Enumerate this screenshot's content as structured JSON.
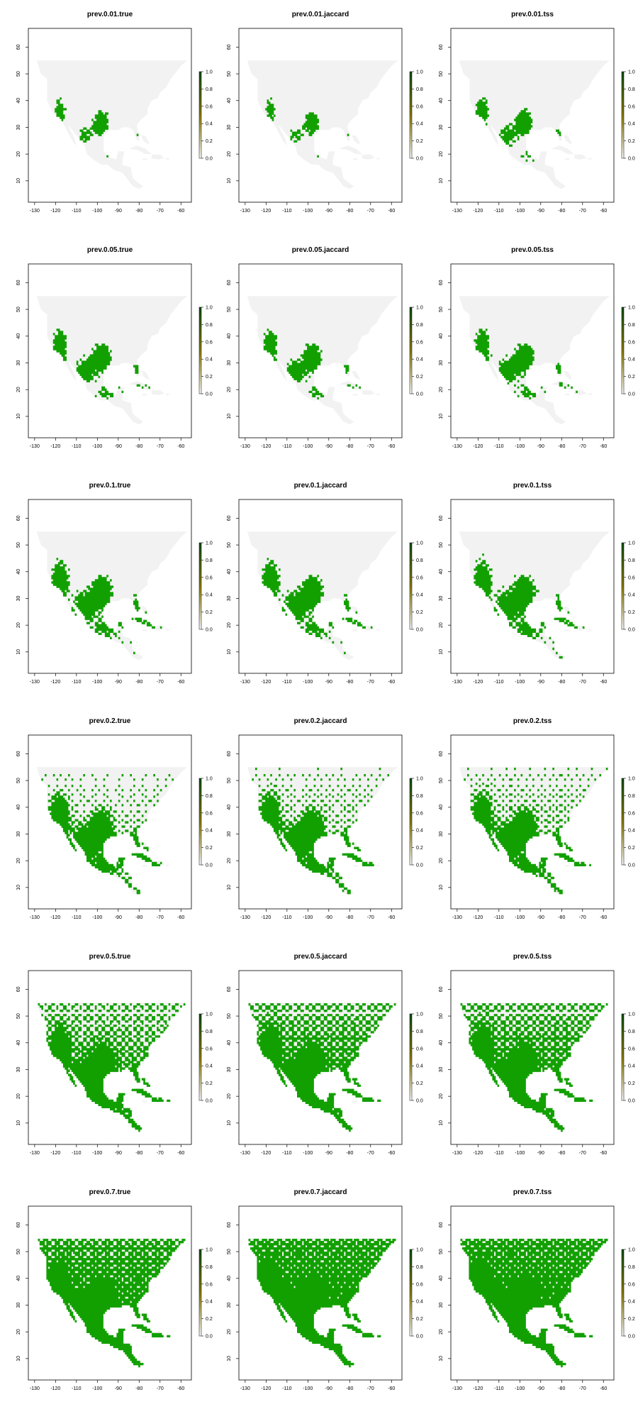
{
  "panels": [
    {
      "title": "prev.0.01.true",
      "fill": 0.06
    },
    {
      "title": "prev.0.01.jaccard",
      "fill": 0.05
    },
    {
      "title": "prev.0.01.tss",
      "fill": 0.09
    },
    {
      "title": "prev.0.05.true",
      "fill": 0.13
    },
    {
      "title": "prev.0.05.jaccard",
      "fill": 0.12
    },
    {
      "title": "prev.0.05.tss",
      "fill": 0.14
    },
    {
      "title": "prev.0.1.true",
      "fill": 0.2
    },
    {
      "title": "prev.0.1.jaccard",
      "fill": 0.2
    },
    {
      "title": "prev.0.1.tss",
      "fill": 0.22
    },
    {
      "title": "prev.0.2.true",
      "fill": 0.35
    },
    {
      "title": "prev.0.2.jaccard",
      "fill": 0.38
    },
    {
      "title": "prev.0.2.tss",
      "fill": 0.4
    },
    {
      "title": "prev.0.5.true",
      "fill": 0.62
    },
    {
      "title": "prev.0.5.jaccard",
      "fill": 0.7
    },
    {
      "title": "prev.0.5.tss",
      "fill": 0.7
    },
    {
      "title": "prev.0.7.true",
      "fill": 0.85
    },
    {
      "title": "prev.0.7.jaccard",
      "fill": 0.9
    },
    {
      "title": "prev.0.7.tss",
      "fill": 0.9
    }
  ],
  "x_ticks": [
    "-130",
    "-120",
    "-110",
    "-100",
    "-90",
    "-80",
    "-70",
    "-60"
  ],
  "y_ticks": [
    "10",
    "20",
    "30",
    "40",
    "50",
    "60"
  ],
  "legend_ticks": [
    "0.0",
    "0.2",
    "0.4",
    "0.6",
    "0.8",
    "1.0"
  ],
  "colors": {
    "land": "#f2f2f2",
    "presence": "#12a000",
    "axis": "#000000",
    "legend_top": "#0b4d00",
    "legend_mid": "#8a7a00"
  }
}
